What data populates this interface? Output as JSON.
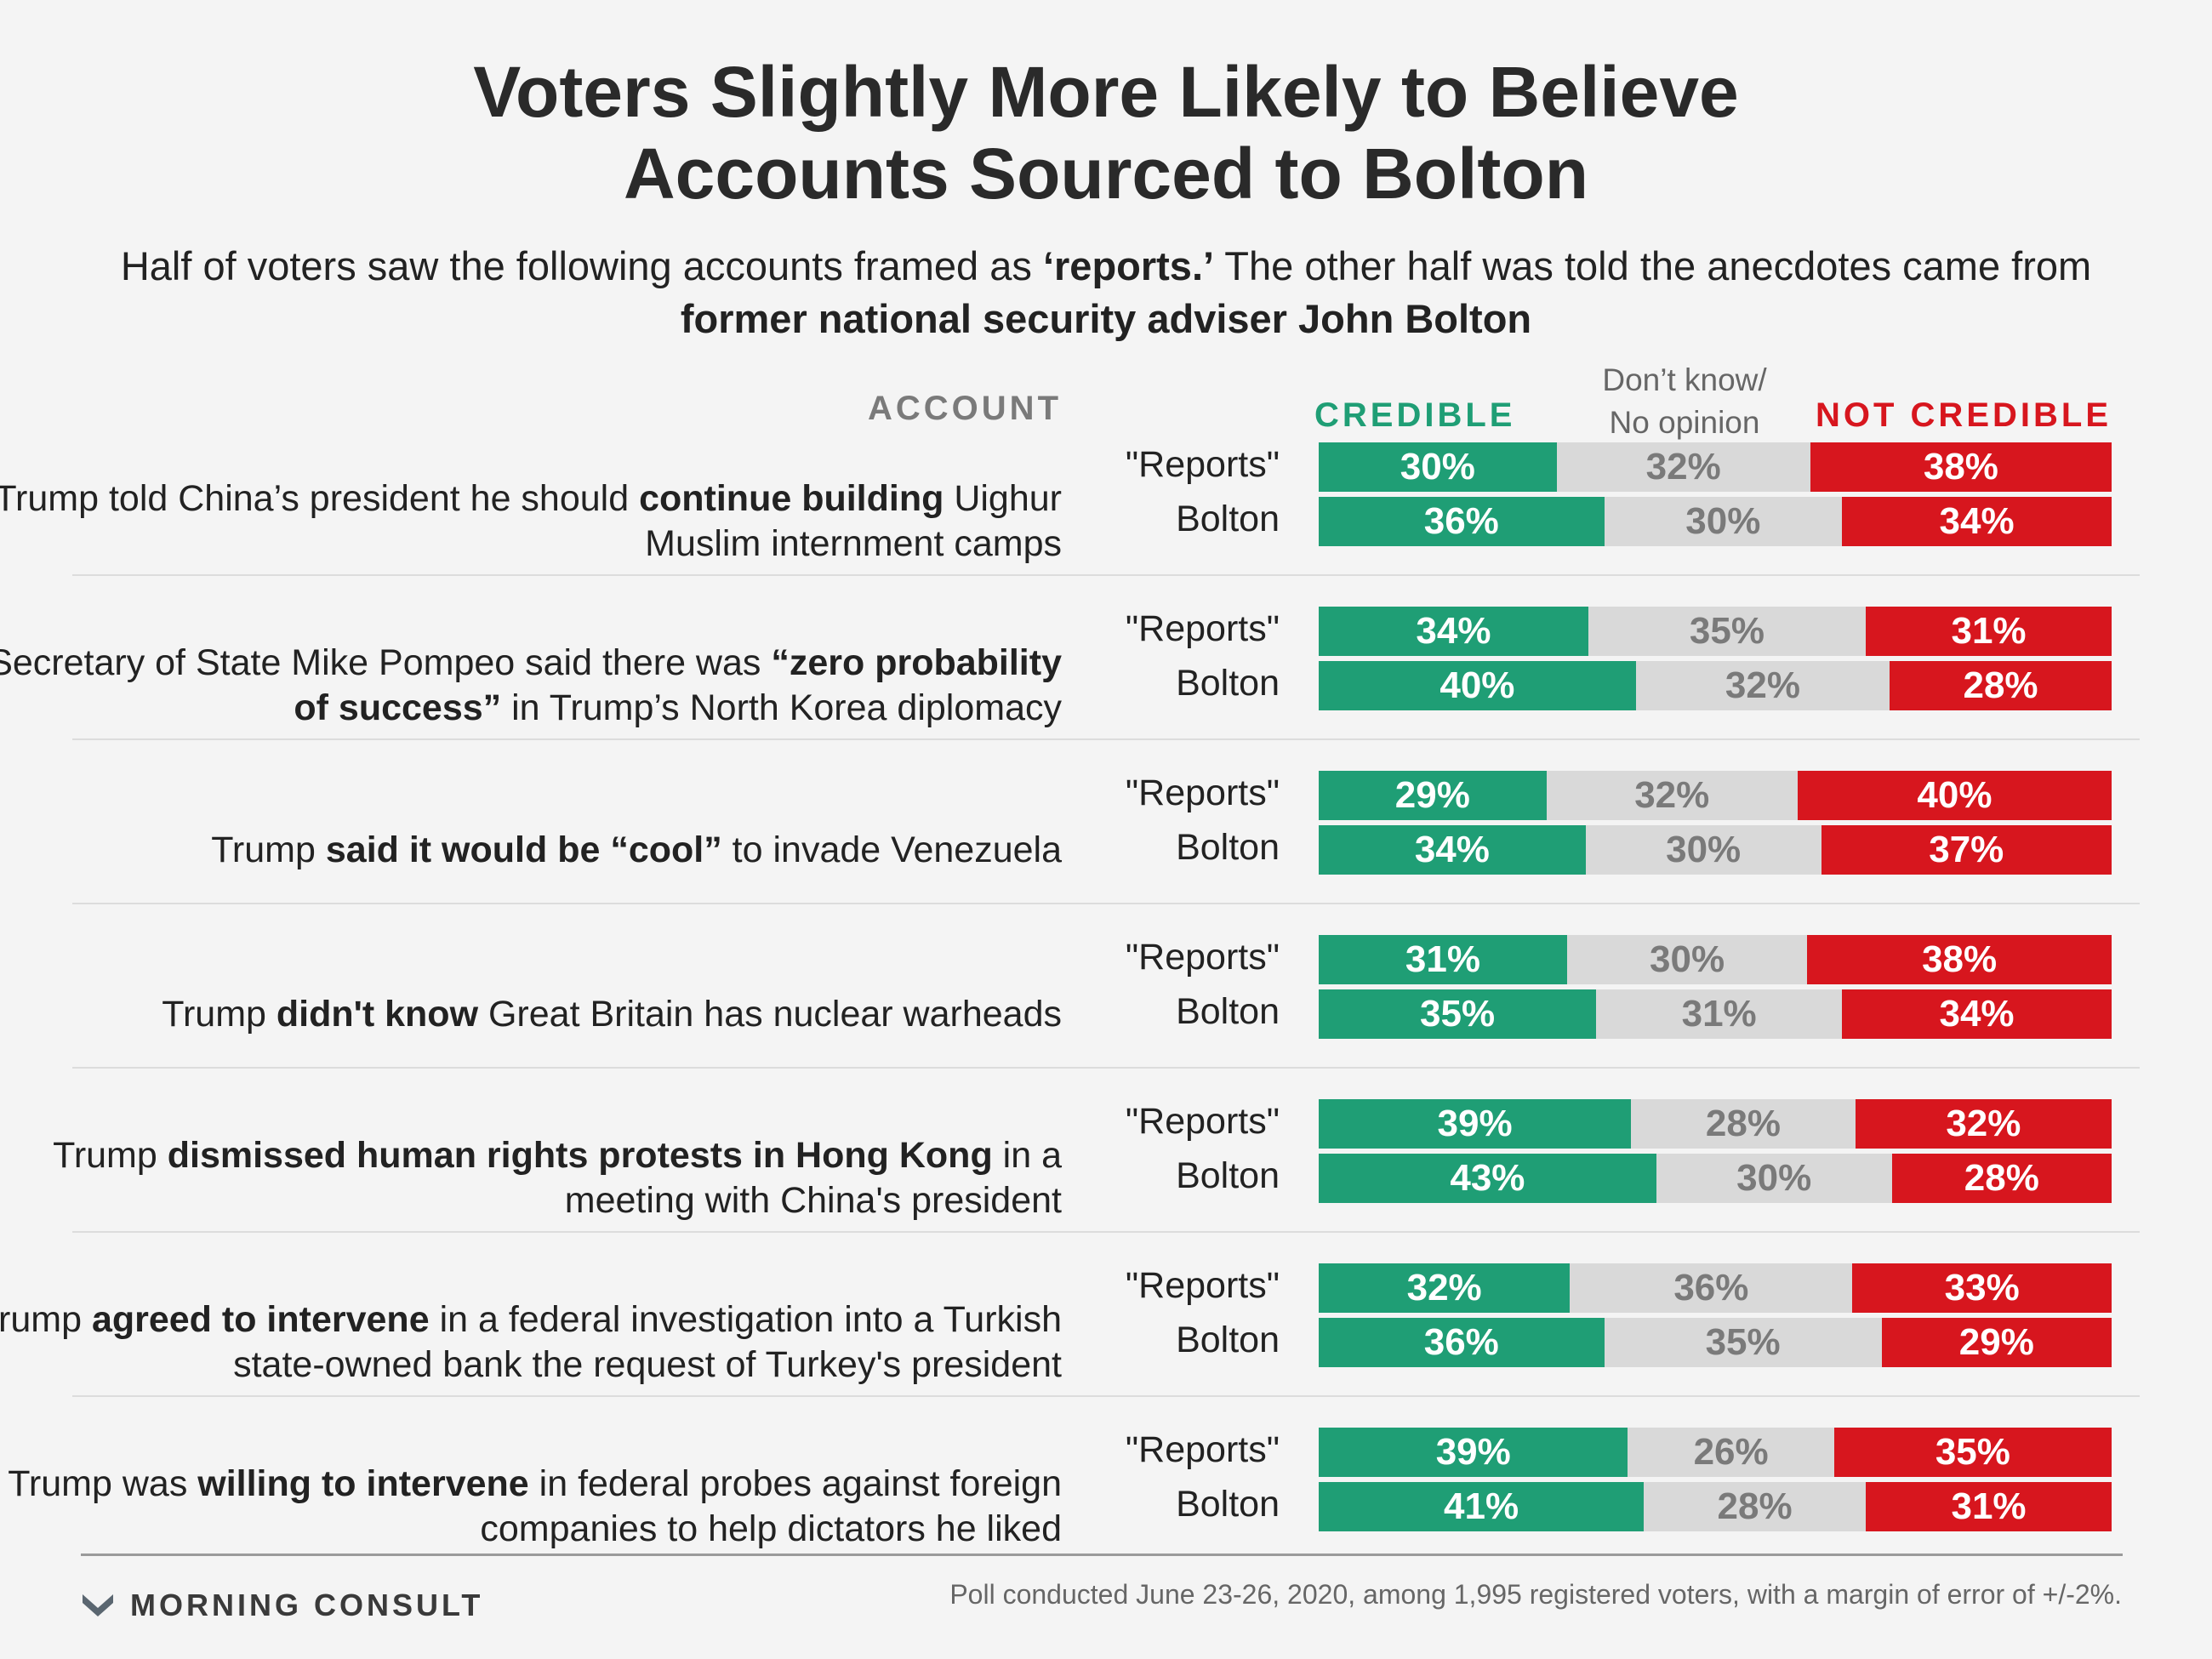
{
  "title_lines": [
    "Voters Slightly More Likely to Believe",
    "Accounts Sourced to Bolton"
  ],
  "subtitle": {
    "part1": "Half of voters saw the following accounts framed as ",
    "bold1": "‘reports.’",
    "part2": " The other half was told the anecdotes came from ",
    "bold2": "former national security adviser John Bolton"
  },
  "headers": {
    "account": "ACCOUNT",
    "credible": "CREDIBLE",
    "dont_know_lines": [
      "Don’t know/",
      "No opinion"
    ],
    "not_credible": "NOT CREDIBLE"
  },
  "colors": {
    "credible": "#1f9e75",
    "dont_know": "#d9d9d9",
    "not_credible": "#d7161e"
  },
  "chart_data": {
    "type": "bar",
    "orientation": "horizontal",
    "stacked": true,
    "series_names": [
      "CREDIBLE",
      "Don’t know/ No opinion",
      "NOT CREDIBLE"
    ],
    "groups": [
      "\"Reports\"",
      "Bolton"
    ],
    "accounts": [
      {
        "text_parts": [
          [
            "Trump told China’s president he should ",
            false
          ],
          [
            "continue building",
            true
          ],
          [
            " Uighur Muslim internment camps",
            false
          ]
        ],
        "rows": [
          {
            "label": "\"Reports\"",
            "values": [
              30,
              32,
              38
            ]
          },
          {
            "label": "Bolton",
            "values": [
              36,
              30,
              34
            ]
          }
        ]
      },
      {
        "text_parts": [
          [
            "Secretary of State Mike Pompeo said there was ",
            false
          ],
          [
            "“zero probability of success”",
            true
          ],
          [
            " in Trump’s North Korea diplomacy",
            false
          ]
        ],
        "rows": [
          {
            "label": "\"Reports\"",
            "values": [
              34,
              35,
              31
            ]
          },
          {
            "label": "Bolton",
            "values": [
              40,
              32,
              28
            ]
          }
        ]
      },
      {
        "text_parts": [
          [
            "Trump ",
            false
          ],
          [
            "said it would be “cool”",
            true
          ],
          [
            " to invade Venezuela",
            false
          ]
        ],
        "rows": [
          {
            "label": "\"Reports\"",
            "values": [
              29,
              32,
              40
            ]
          },
          {
            "label": "Bolton",
            "values": [
              34,
              30,
              37
            ]
          }
        ]
      },
      {
        "text_parts": [
          [
            "Trump ",
            false
          ],
          [
            "didn't know",
            true
          ],
          [
            " Great Britain has nuclear warheads",
            false
          ]
        ],
        "rows": [
          {
            "label": "\"Reports\"",
            "values": [
              31,
              30,
              38
            ]
          },
          {
            "label": "Bolton",
            "values": [
              35,
              31,
              34
            ]
          }
        ]
      },
      {
        "text_parts": [
          [
            "Trump ",
            false
          ],
          [
            "dismissed human rights protests in Hong Kong",
            true
          ],
          [
            " in a meeting with China's president",
            false
          ]
        ],
        "rows": [
          {
            "label": "\"Reports\"",
            "values": [
              39,
              28,
              32
            ]
          },
          {
            "label": "Bolton",
            "values": [
              43,
              30,
              28
            ]
          }
        ]
      },
      {
        "text_parts": [
          [
            "Trump ",
            false
          ],
          [
            "agreed to intervene",
            true
          ],
          [
            " in a federal investigation into a Turkish state-owned bank the request of Turkey's president",
            false
          ]
        ],
        "rows": [
          {
            "label": "\"Reports\"",
            "values": [
              32,
              36,
              33
            ]
          },
          {
            "label": "Bolton",
            "values": [
              36,
              35,
              29
            ]
          }
        ]
      },
      {
        "text_parts": [
          [
            "Trump was ",
            false
          ],
          [
            "willing to intervene",
            true
          ],
          [
            " in federal probes against foreign companies to help dictators he liked",
            false
          ]
        ],
        "rows": [
          {
            "label": "\"Reports\"",
            "values": [
              39,
              26,
              35
            ]
          },
          {
            "label": "Bolton",
            "values": [
              41,
              28,
              31
            ]
          }
        ]
      }
    ]
  },
  "footer": {
    "logo_text": "MORNING CONSULT",
    "note": "Poll conducted June 23-26, 2020, among 1,995 registered voters, with a margin of error of +/-2%."
  }
}
